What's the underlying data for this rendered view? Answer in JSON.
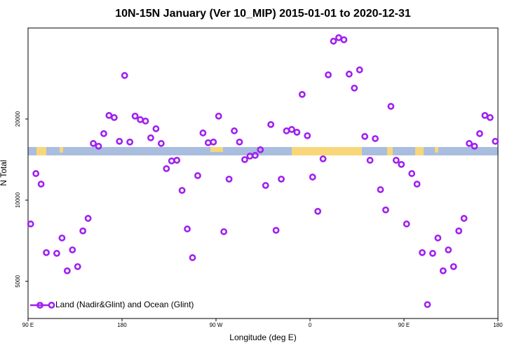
{
  "chart_data": {
    "type": "scatter",
    "title": "10N-15N January (Ver 10_MIP)   2015-01-01 to 2020-12-31",
    "x_label": "Longitude (deg E)",
    "y_label": "N Total",
    "xlim": [
      90,
      540
    ],
    "xticks": [
      {
        "value": 90,
        "label": "90 E"
      },
      {
        "value": 180,
        "label": "180"
      },
      {
        "value": 270,
        "label": "90 W"
      },
      {
        "value": 360,
        "label": "0"
      },
      {
        "value": 450,
        "label": "90 E"
      },
      {
        "value": 540,
        "label": "180"
      }
    ],
    "ylim": [
      3640,
      43500
    ],
    "y_log": true,
    "yticks": [
      5000,
      10000,
      20000
    ],
    "legend": "bottom-left",
    "x": [
      92.5,
      97.5,
      102.5,
      107.5,
      112.5,
      117.5,
      122.5,
      127.5,
      132.5,
      137.5,
      142.5,
      147.5,
      152.5,
      157.5,
      162.5,
      167.5,
      172.5,
      177.5,
      182.5,
      187.5,
      192.5,
      197.5,
      202.5,
      207.5,
      212.5,
      217.5,
      222.5,
      227.5,
      232.5,
      237.5,
      242.5,
      247.5,
      252.5,
      257.5,
      262.5,
      267.5,
      272.5,
      277.5,
      282.5,
      287.5,
      292.5,
      297.5,
      302.5,
      307.5,
      312.5,
      317.5,
      322.5,
      327.5,
      332.5,
      337.5,
      342.5,
      347.5,
      352.5,
      357.5,
      362.5,
      367.5,
      372.5,
      377.5,
      382.5,
      387.5,
      392.5,
      397.5,
      402.5,
      407.5,
      412.5,
      417.5,
      422.5,
      427.5,
      432.5,
      437.5,
      442.5,
      447.5,
      452.5,
      457.5,
      462.5,
      467.5,
      472.5,
      477.5,
      482.5,
      487.5,
      492.5,
      497.5,
      502.5,
      507.5,
      512.5,
      517.5,
      522.5,
      527.5,
      532.5,
      537.5
    ],
    "series": [
      {
        "name": "Land (Nadir&Glint) and Ocean (Glint)",
        "color": "#a020f0",
        "values": [
          8160,
          12550,
          11470,
          6390,
          4080,
          6350,
          7240,
          5470,
          6540,
          5670,
          7690,
          8560,
          16230,
          15850,
          17650,
          20620,
          20250,
          16530,
          29000,
          16430,
          20500,
          19890,
          19650,
          17030,
          18400,
          16230,
          13090,
          13980,
          14060,
          10870,
          7820,
          6120,
          12330,
          17750,
          16330,
          16430,
          20500,
          7640,
          11970,
          18070,
          16430,
          14140,
          14570,
          14660,
          15380,
          11340,
          19080,
          7730,
          11970,
          18070,
          18290,
          17860,
          24670,
          17340,
          12180,
          9090,
          14230,
          29170,
          38870,
          40050,
          39340,
          29350,
          26040,
          30420,
          17230,
          14060,
          16920,
          10940,
          9200,
          22280,
          14060,
          13570,
          8160,
          12550,
          11470,
          6390,
          4100,
          6350,
          7240,
          5470,
          6540,
          5670,
          7690,
          8560,
          16230,
          15850,
          17650,
          20620,
          20250,
          16530
        ]
      }
    ]
  }
}
